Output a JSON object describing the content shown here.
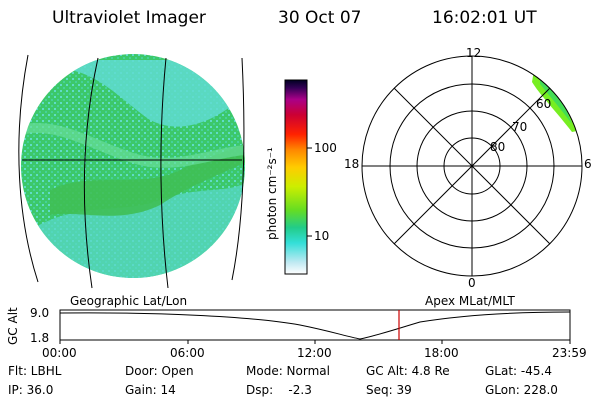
{
  "header": {
    "instrument": "Ultraviolet Imager",
    "date": "30 Oct 07",
    "time": "16:02:01 UT"
  },
  "colorbar": {
    "unit_label": "photon cm⁻²s⁻¹",
    "ticks": [
      "100",
      "10"
    ]
  },
  "polar_plot": {
    "mlt_labels": [
      "12",
      "18",
      "6",
      "0"
    ],
    "lat_labels": [
      "60",
      "70",
      "80"
    ]
  },
  "frame_labels": {
    "geographic": "Geographic Lat/Lon",
    "apex": "Apex MLat/MLT"
  },
  "altitude_plot": {
    "axis_title": "GC Alt",
    "y_ticks": [
      "9.0",
      "1.8"
    ],
    "x_ticks": [
      "00:00",
      "06:00",
      "12:00",
      "18:00",
      "23:59"
    ]
  },
  "info": {
    "flt": "Flt: LBHL",
    "ip": "IP: 36.0",
    "door": "Door: Open",
    "gain": "Gain: 14",
    "mode": "Mode: Normal",
    "dsp": "Dsp:    -2.3",
    "gcalt": "GC Alt: 4.8 Re",
    "seq": "Seq: 39",
    "glat": "GLat: -45.4",
    "glon": "GLon: 228.0"
  },
  "colors": {
    "marker": "#cc0000",
    "image_base": "#33cc66",
    "image_light": "#55ddcc",
    "aurora": "#77ee22"
  }
}
